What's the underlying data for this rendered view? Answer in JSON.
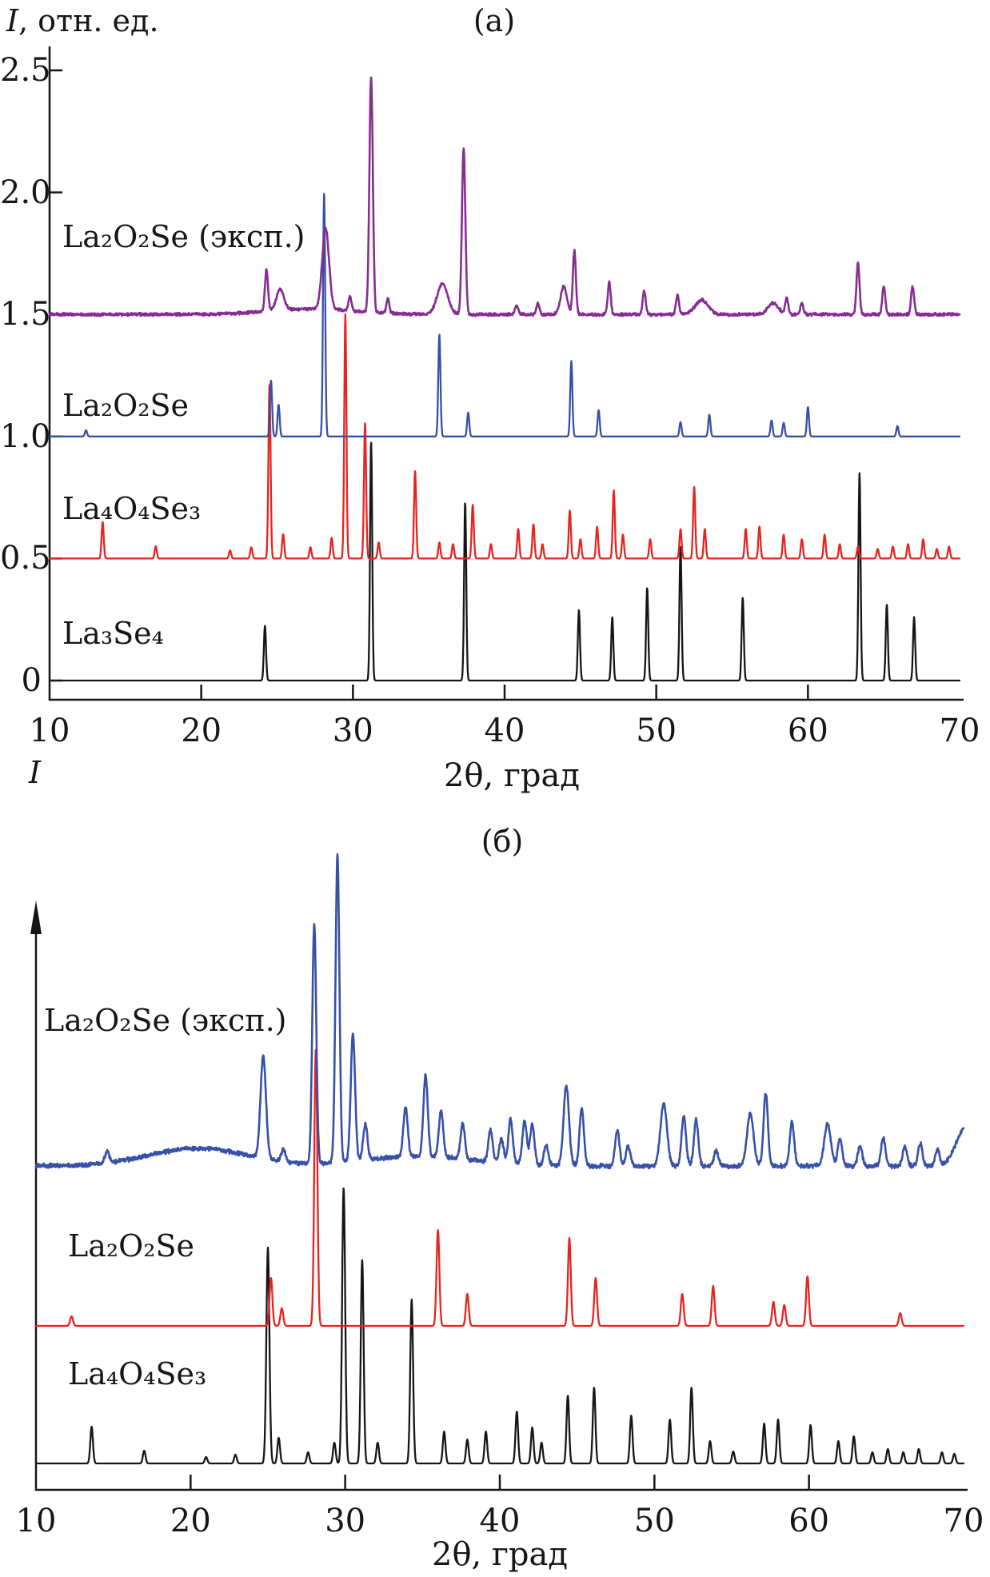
{
  "chart_data": [
    {
      "type": "line",
      "panel": "a",
      "title": "(а)",
      "xlabel": "2θ, град",
      "ylabel": "I, отн. ед.",
      "ylabel_italic": "I",
      "ylabel_rest": ", отн. ед.",
      "x_range": [
        10,
        70
      ],
      "ylim": [
        0,
        2.5
      ],
      "grid": false,
      "legend_position": "inline-left",
      "x_ticks": [
        {
          "v": 10,
          "label": "10",
          "tick": false
        },
        {
          "v": 20,
          "label": "20",
          "tick": true
        },
        {
          "v": 30,
          "label": "30",
          "tick": true
        },
        {
          "v": 40,
          "label": "40",
          "tick": true
        },
        {
          "v": 50,
          "label": "50",
          "tick": true
        },
        {
          "v": 60,
          "label": "60",
          "tick": true
        },
        {
          "v": 70,
          "label": "70",
          "tick": false
        }
      ],
      "y_ticks": [
        {
          "v": 0,
          "label": "0"
        },
        {
          "v": 0.5,
          "label": "0.5"
        },
        {
          "v": 1.0,
          "label": "1.0"
        },
        {
          "v": 1.5,
          "label": "1.5"
        },
        {
          "v": 2.0,
          "label": "2.0"
        },
        {
          "v": 2.5,
          "label": "2.5"
        }
      ],
      "series": [
        {
          "id": "la3se4",
          "name": "La₃Se₄",
          "color": "#161616",
          "offset": 0,
          "peak_width": 0.1,
          "noise": 0,
          "peaks": [
            [
              24.2,
              0.225
            ],
            [
              31.2,
              0.98
            ],
            [
              37.4,
              0.73
            ],
            [
              44.9,
              0.29
            ],
            [
              47.1,
              0.26
            ],
            [
              49.4,
              0.38
            ],
            [
              51.6,
              0.55
            ],
            [
              55.7,
              0.34
            ],
            [
              63.4,
              0.85
            ],
            [
              65.2,
              0.31
            ],
            [
              67.0,
              0.26
            ]
          ]
        },
        {
          "id": "la4o4se3",
          "name": "La₄O₄Se₃",
          "color": "#e8231e",
          "offset": 0.5,
          "peak_width": 0.1,
          "noise": 0,
          "peaks": [
            [
              13.5,
              0.15
            ],
            [
              17.0,
              0.05
            ],
            [
              21.9,
              0.033
            ],
            [
              23.3,
              0.046
            ],
            [
              24.5,
              0.715
            ],
            [
              25.4,
              0.1
            ],
            [
              27.2,
              0.046
            ],
            [
              28.6,
              0.085
            ],
            [
              29.5,
              1.0
            ],
            [
              30.8,
              0.557
            ],
            [
              31.7,
              0.066
            ],
            [
              34.1,
              0.36
            ],
            [
              35.7,
              0.066
            ],
            [
              36.6,
              0.059
            ],
            [
              37.9,
              0.22
            ],
            [
              39.1,
              0.059
            ],
            [
              40.9,
              0.121
            ],
            [
              41.9,
              0.141
            ],
            [
              42.5,
              0.059
            ],
            [
              44.3,
              0.197
            ],
            [
              45.0,
              0.079
            ],
            [
              46.1,
              0.131
            ],
            [
              47.2,
              0.279
            ],
            [
              47.8,
              0.098
            ],
            [
              49.6,
              0.079
            ],
            [
              51.6,
              0.121
            ],
            [
              52.5,
              0.295
            ],
            [
              53.2,
              0.121
            ],
            [
              55.9,
              0.121
            ],
            [
              56.8,
              0.131
            ],
            [
              58.4,
              0.098
            ],
            [
              59.6,
              0.079
            ],
            [
              61.1,
              0.098
            ],
            [
              62.1,
              0.059
            ],
            [
              63.3,
              0.049
            ],
            [
              64.6,
              0.039
            ],
            [
              65.6,
              0.049
            ],
            [
              66.6,
              0.059
            ],
            [
              67.6,
              0.079
            ],
            [
              68.5,
              0.039
            ],
            [
              69.3,
              0.049
            ]
          ]
        },
        {
          "id": "la2o2se",
          "name": "La₂O₂Se",
          "color": "#3750a8",
          "offset": 1.0,
          "peak_width": 0.1,
          "noise": 0,
          "peaks": [
            [
              12.4,
              0.026
            ],
            [
              24.6,
              0.23
            ],
            [
              25.1,
              0.131
            ],
            [
              28.1,
              1.0
            ],
            [
              35.7,
              0.42
            ],
            [
              37.6,
              0.098
            ],
            [
              44.4,
              0.311
            ],
            [
              46.2,
              0.108
            ],
            [
              51.6,
              0.059
            ],
            [
              53.5,
              0.089
            ],
            [
              57.6,
              0.066
            ],
            [
              58.4,
              0.056
            ],
            [
              60.0,
              0.121
            ],
            [
              65.9,
              0.043
            ]
          ]
        },
        {
          "id": "la2o2se-exp",
          "name": "La₂O₂Se (эксп.)",
          "color": "#862d92",
          "offset": 1.5,
          "peak_width": 0.14,
          "noise": 0.009,
          "humps": [
            [
              27.3,
              4,
              0.023
            ]
          ],
          "peaks": [
            [
              24.3,
              0.17
            ],
            [
              25.2,
              0.085,
              0.35
            ],
            [
              28.2,
              0.33,
              0.32
            ],
            [
              29.8,
              0.059
            ],
            [
              31.2,
              0.965,
              0.16
            ],
            [
              32.3,
              0.059
            ],
            [
              35.9,
              0.125,
              0.5
            ],
            [
              37.3,
              0.68,
              0.16
            ],
            [
              40.8,
              0.039
            ],
            [
              42.2,
              0.046
            ],
            [
              43.9,
              0.115,
              0.3
            ],
            [
              44.6,
              0.262
            ],
            [
              46.9,
              0.131
            ],
            [
              49.2,
              0.098
            ],
            [
              51.4,
              0.079
            ],
            [
              53.0,
              0.059,
              0.6
            ],
            [
              57.7,
              0.046,
              0.5
            ],
            [
              58.6,
              0.066
            ],
            [
              59.6,
              0.046
            ],
            [
              63.3,
              0.213
            ],
            [
              65.0,
              0.115
            ],
            [
              66.9,
              0.115
            ]
          ]
        }
      ]
    },
    {
      "type": "line",
      "panel": "б",
      "title": "(б)",
      "xlabel": "2θ, град",
      "ylabel": "I",
      "ylabel_italic": "I",
      "ylabel_rest": "",
      "x_range": [
        10,
        70
      ],
      "ylim": null,
      "grid": false,
      "legend_position": "inline-left",
      "x_ticks": [
        {
          "v": 10,
          "label": "10",
          "tick": false
        },
        {
          "v": 20,
          "label": "20",
          "tick": true
        },
        {
          "v": 30,
          "label": "30",
          "tick": true
        },
        {
          "v": 40,
          "label": "40",
          "tick": true
        },
        {
          "v": 50,
          "label": "50",
          "tick": true
        },
        {
          "v": 60,
          "label": "60",
          "tick": true
        },
        {
          "v": 70,
          "label": "70",
          "tick": false
        }
      ],
      "y_ticks": [],
      "series": [
        {
          "id": "la4o4se3",
          "name": "La₄O₄Se₃",
          "color": "#161616",
          "offset": 33,
          "peak_width": 0.12,
          "noise": 0,
          "peaks": [
            [
              13.6,
              46
            ],
            [
              17.0,
              16
            ],
            [
              21.0,
              8
            ],
            [
              22.9,
              11
            ],
            [
              25.0,
              270,
              0.14
            ],
            [
              25.7,
              32
            ],
            [
              27.6,
              14
            ],
            [
              29.3,
              26
            ],
            [
              29.9,
              345,
              0.14
            ],
            [
              31.1,
              255,
              0.13
            ],
            [
              32.1,
              26
            ],
            [
              34.3,
              205,
              0.13
            ],
            [
              36.4,
              40
            ],
            [
              37.9,
              30
            ],
            [
              39.1,
              40
            ],
            [
              41.1,
              65
            ],
            [
              42.1,
              45
            ],
            [
              42.7,
              26
            ],
            [
              44.4,
              85
            ],
            [
              46.1,
              95
            ],
            [
              48.5,
              60
            ],
            [
              51.0,
              55
            ],
            [
              52.4,
              95
            ],
            [
              53.6,
              28
            ],
            [
              55.1,
              15
            ],
            [
              57.1,
              50
            ],
            [
              58.0,
              55
            ],
            [
              60.1,
              48
            ],
            [
              61.9,
              28
            ],
            [
              62.9,
              34
            ],
            [
              64.1,
              14
            ],
            [
              65.1,
              18
            ],
            [
              66.1,
              14
            ],
            [
              67.1,
              18
            ],
            [
              68.6,
              14
            ],
            [
              69.4,
              12
            ]
          ]
        },
        {
          "id": "la2o2se",
          "name": "La₂O₂Se",
          "color": "#e8231e",
          "offset": 205,
          "peak_width": 0.13,
          "noise": 0,
          "peaks": [
            [
              12.3,
              12
            ],
            [
              25.2,
              60
            ],
            [
              25.9,
              22
            ],
            [
              28.1,
              346,
              0.14
            ],
            [
              36.0,
              120
            ],
            [
              37.9,
              40
            ],
            [
              44.5,
              110
            ],
            [
              46.2,
              60
            ],
            [
              51.8,
              40
            ],
            [
              53.8,
              50
            ],
            [
              57.7,
              30
            ],
            [
              58.4,
              26
            ],
            [
              59.9,
              62
            ],
            [
              65.9,
              16
            ]
          ]
        },
        {
          "id": "la2o2se-exp",
          "name": "La₂O₂Se (эксп.)",
          "color": "#3750a8",
          "offset": 405,
          "peak_width": 0.2,
          "noise": 4,
          "humps": [
            [
              20.5,
              4.5,
              22
            ],
            [
              34.8,
              5,
              12
            ],
            [
              70.2,
              0.9,
              50
            ]
          ],
          "peaks": [
            [
              14.6,
              14
            ],
            [
              24.7,
              128,
              0.25
            ],
            [
              26.0,
              15
            ],
            [
              28.0,
              300,
              0.18
            ],
            [
              29.5,
              385,
              0.18
            ],
            [
              30.5,
              160,
              0.2
            ],
            [
              31.3,
              45
            ],
            [
              33.9,
              62
            ],
            [
              35.2,
              102
            ],
            [
              36.2,
              58
            ],
            [
              37.6,
              45
            ],
            [
              39.4,
              40
            ],
            [
              40.1,
              30
            ],
            [
              40.7,
              55
            ],
            [
              41.6,
              55
            ],
            [
              42.1,
              50
            ],
            [
              43.0,
              25
            ],
            [
              44.3,
              100,
              0.25
            ],
            [
              45.3,
              72
            ],
            [
              47.6,
              45
            ],
            [
              48.3,
              25
            ],
            [
              50.6,
              78,
              0.3
            ],
            [
              51.9,
              62
            ],
            [
              52.7,
              58
            ],
            [
              54.0,
              20
            ],
            [
              56.2,
              65,
              0.3
            ],
            [
              57.2,
              92
            ],
            [
              58.9,
              55
            ],
            [
              61.2,
              52,
              0.3
            ],
            [
              62.0,
              35
            ],
            [
              63.3,
              25
            ],
            [
              64.8,
              35
            ],
            [
              66.2,
              25
            ],
            [
              67.2,
              28
            ],
            [
              68.3,
              20
            ]
          ]
        }
      ]
    }
  ]
}
